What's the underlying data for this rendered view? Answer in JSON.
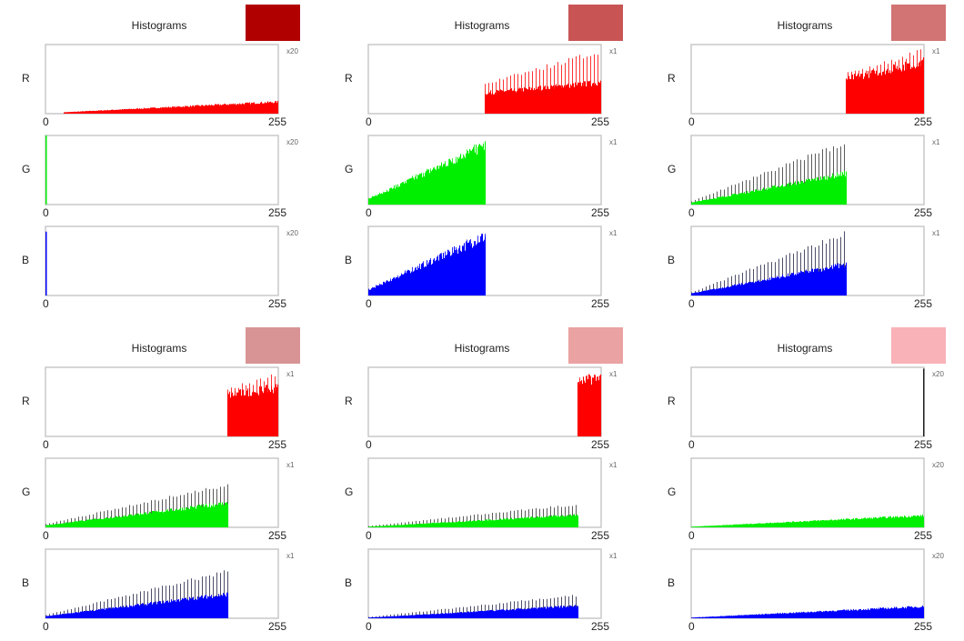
{
  "chart_data": [
    {
      "type": "bar",
      "title": "Histograms",
      "swatch": "#b00000",
      "channels": [
        {
          "label": "R",
          "scale": "x20",
          "color": "#ff0000",
          "spike_color": "#ff0000",
          "start": 20,
          "end": 255,
          "base": [
            0.02,
            0.17
          ],
          "spike": [
            0.02,
            0.17
          ]
        },
        {
          "label": "G",
          "scale": "x20",
          "color": "#00ee00",
          "spike_color": "#00ee00",
          "start": 0,
          "end": 0,
          "base": [
            1,
            1
          ],
          "spike": [
            1,
            1
          ]
        },
        {
          "label": "B",
          "scale": "x20",
          "color": "#0000ff",
          "spike_color": "#0000ff",
          "start": 0,
          "end": 0,
          "base": [
            1,
            1
          ],
          "spike": [
            1,
            1
          ]
        }
      ]
    },
    {
      "type": "bar",
      "title": "Histograms",
      "swatch": "#c85454",
      "channels": [
        {
          "label": "R",
          "scale": "x1",
          "color": "#ff0000",
          "spike_color": "#ff0000",
          "start": 128,
          "end": 255,
          "base": [
            0.3,
            0.45
          ],
          "spike": [
            0.45,
            0.95
          ]
        },
        {
          "label": "G",
          "scale": "x1",
          "color": "#00ee00",
          "spike_color": "#00ee00",
          "start": 0,
          "end": 128,
          "base": [
            0.08,
            0.85
          ],
          "spike": [
            0.1,
            0.95
          ]
        },
        {
          "label": "B",
          "scale": "x1",
          "color": "#0000ff",
          "spike_color": "#0000ff",
          "start": 0,
          "end": 128,
          "base": [
            0.08,
            0.85
          ],
          "spike": [
            0.1,
            0.95
          ]
        }
      ]
    },
    {
      "type": "bar",
      "title": "Histograms",
      "swatch": "#d27474",
      "channels": [
        {
          "label": "R",
          "scale": "x1",
          "color": "#ff0000",
          "spike_color": "#ff0000",
          "start": 170,
          "end": 255,
          "base": [
            0.5,
            0.75
          ],
          "spike": [
            0.6,
            0.95
          ]
        },
        {
          "label": "G",
          "scale": "x1",
          "color": "#00ee00",
          "spike_color": "#333333",
          "start": 0,
          "end": 170,
          "base": [
            0.03,
            0.45
          ],
          "spike": [
            0.05,
            0.95
          ]
        },
        {
          "label": "B",
          "scale": "x1",
          "color": "#0000ff",
          "spike_color": "#222244",
          "start": 0,
          "end": 170,
          "base": [
            0.03,
            0.45
          ],
          "spike": [
            0.05,
            0.95
          ]
        }
      ]
    },
    {
      "type": "bar",
      "title": "Histograms",
      "swatch": "#d89494",
      "channels": [
        {
          "label": "R",
          "scale": "x1",
          "color": "#ff0000",
          "spike_color": "#ff0000",
          "start": 200,
          "end": 255,
          "base": [
            0.6,
            0.7
          ],
          "spike": [
            0.7,
            0.95
          ]
        },
        {
          "label": "G",
          "scale": "x1",
          "color": "#00ee00",
          "spike_color": "#333333",
          "start": 0,
          "end": 200,
          "base": [
            0.03,
            0.35
          ],
          "spike": [
            0.05,
            0.65
          ]
        },
        {
          "label": "B",
          "scale": "x1",
          "color": "#0000ff",
          "spike_color": "#222244",
          "start": 0,
          "end": 200,
          "base": [
            0.03,
            0.35
          ],
          "spike": [
            0.05,
            0.72
          ]
        }
      ]
    },
    {
      "type": "bar",
      "title": "Histograms",
      "swatch": "#eaa2a2",
      "channels": [
        {
          "label": "R",
          "scale": "x1",
          "color": "#ff0000",
          "spike_color": "#ff0000",
          "start": 230,
          "end": 255,
          "base": [
            0.8,
            0.85
          ],
          "spike": [
            0.85,
            0.95
          ]
        },
        {
          "label": "G",
          "scale": "x1",
          "color": "#00ee00",
          "spike_color": "#333333",
          "start": 0,
          "end": 230,
          "base": [
            0.01,
            0.18
          ],
          "spike": [
            0.02,
            0.35
          ]
        },
        {
          "label": "B",
          "scale": "x1",
          "color": "#0000ff",
          "spike_color": "#222244",
          "start": 0,
          "end": 230,
          "base": [
            0.01,
            0.18
          ],
          "spike": [
            0.02,
            0.35
          ]
        }
      ]
    },
    {
      "type": "bar",
      "title": "Histograms",
      "swatch": "#f8b2b8",
      "channels": [
        {
          "label": "R",
          "scale": "x20",
          "color": "#222222",
          "spike_color": "#222222",
          "start": 255,
          "end": 255,
          "base": [
            1,
            1
          ],
          "spike": [
            1,
            1
          ]
        },
        {
          "label": "G",
          "scale": "x20",
          "color": "#00ee00",
          "spike_color": "#00ee00",
          "start": 0,
          "end": 255,
          "base": [
            0.01,
            0.17
          ],
          "spike": [
            0.01,
            0.17
          ]
        },
        {
          "label": "B",
          "scale": "x20",
          "color": "#0000ff",
          "spike_color": "#0000ff",
          "start": 0,
          "end": 255,
          "base": [
            0.01,
            0.17
          ],
          "spike": [
            0.01,
            0.17
          ]
        }
      ]
    }
  ],
  "axis": {
    "min": "0",
    "max": "255"
  }
}
